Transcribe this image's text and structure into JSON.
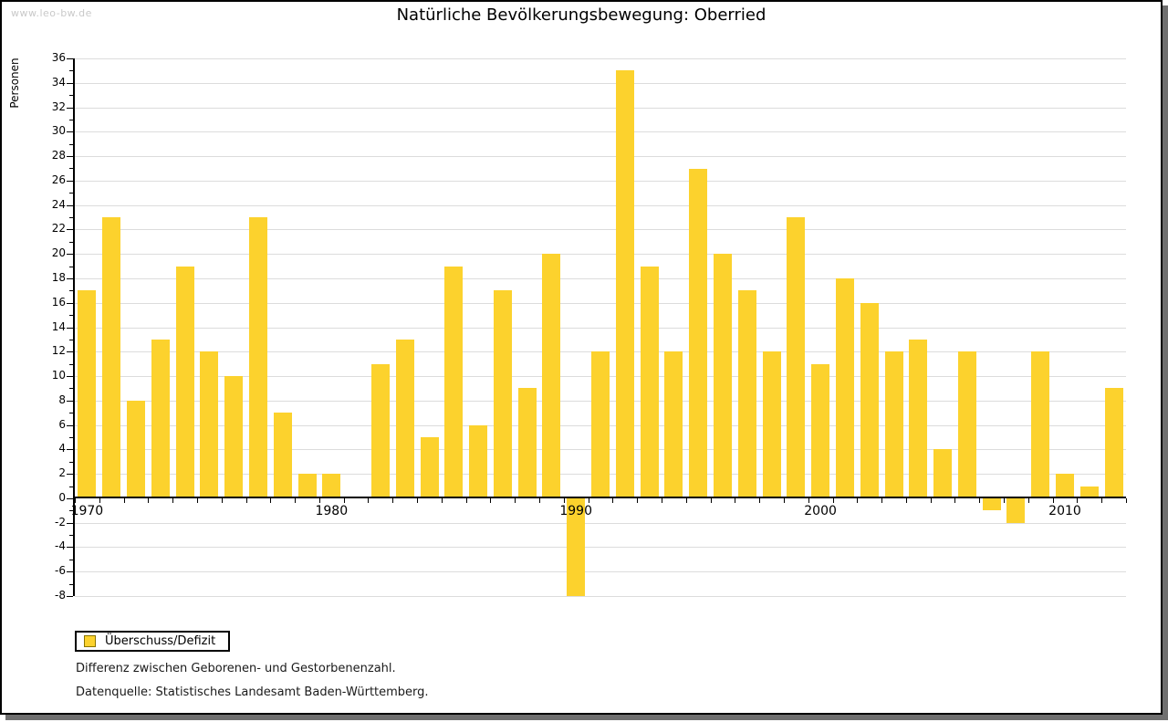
{
  "watermark": "www.leo-bw.de",
  "title": "Natürliche Bevölkerungsbewegung: Oberried",
  "y_axis_label": "Personen",
  "legend": {
    "label": "Überschuss/Defizit"
  },
  "footnotes": [
    "Differenz zwischen Geborenen- und Gestorbenenzahl.",
    "Datenquelle: Statistisches Landesamt Baden-Württemberg."
  ],
  "colors": {
    "bar": "#fcd22d",
    "legend_swatch": "#fcd22d",
    "grid": "#dcdcdc",
    "axis": "#000000",
    "watermark_text": "#c9c9c9",
    "frame_shadow": "#6f6f6f"
  },
  "chart_data": {
    "type": "bar",
    "title": "Natürliche Bevölkerungsbewegung: Oberried",
    "xlabel": "",
    "ylabel": "Personen",
    "ylim": [
      -8,
      36
    ],
    "ytick_step": 2,
    "grid": true,
    "legend_position": "bottom-left",
    "series_name": "Überschuss/Defizit",
    "x": [
      1970,
      1971,
      1972,
      1973,
      1974,
      1975,
      1976,
      1977,
      1978,
      1979,
      1980,
      1981,
      1982,
      1983,
      1984,
      1985,
      1986,
      1987,
      1988,
      1989,
      1990,
      1991,
      1992,
      1993,
      1994,
      1995,
      1996,
      1997,
      1998,
      1999,
      2000,
      2001,
      2002,
      2003,
      2004,
      2005,
      2006,
      2007,
      2008,
      2009,
      2010,
      2011,
      2012
    ],
    "values": [
      17,
      23,
      8,
      13,
      19,
      12,
      10,
      23,
      7,
      2,
      2,
      0,
      11,
      13,
      5,
      19,
      6,
      17,
      9,
      20,
      -8,
      12,
      35,
      19,
      12,
      27,
      20,
      17,
      12,
      23,
      11,
      18,
      16,
      12,
      13,
      4,
      12,
      -1,
      -2,
      12,
      2,
      1,
      9
    ],
    "x_decade_labels": [
      1970,
      1980,
      1990,
      2000,
      2010
    ]
  }
}
